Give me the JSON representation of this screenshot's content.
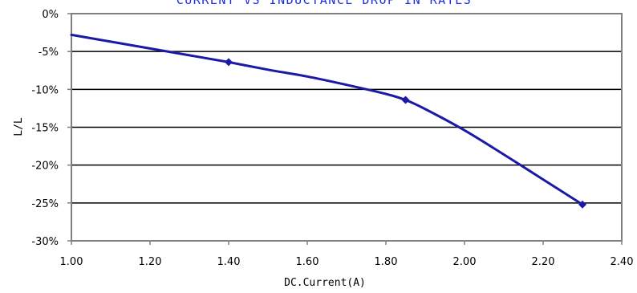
{
  "chart_data": {
    "type": "line",
    "title": "CURRENT VS INDUCTANCE DROP IN RATES",
    "xlabel": "DC.Current(A)",
    "ylabel": "L/L",
    "xlim": [
      1.0,
      2.4
    ],
    "ylim": [
      -30,
      0
    ],
    "x_ticks": [
      "1.00",
      "1.20",
      "1.40",
      "1.60",
      "1.80",
      "2.00",
      "2.20",
      "2.40"
    ],
    "y_ticks": [
      "0%",
      "-5%",
      "-10%",
      "-15%",
      "-20%",
      "-25%",
      "-30%"
    ],
    "grid": "horizontal",
    "series": [
      {
        "curve_x": [
          1.0,
          1.1,
          1.2,
          1.3,
          1.4,
          1.5,
          1.6,
          1.7,
          1.8,
          1.85,
          1.9,
          2.0,
          2.1,
          2.2,
          2.3
        ],
        "curve_y": [
          -2.8,
          -3.7,
          -4.6,
          -5.5,
          -6.4,
          -7.4,
          -8.3,
          -9.4,
          -10.6,
          -11.4,
          -12.6,
          -15.4,
          -18.6,
          -21.9,
          -25.2
        ],
        "markers": [
          {
            "x": 1.4,
            "y": -6.4
          },
          {
            "x": 1.85,
            "y": -11.4
          },
          {
            "x": 2.3,
            "y": -25.2
          }
        ]
      }
    ],
    "colors": {
      "line": "#1a1aa6",
      "title": "#1f2ee0",
      "frame": "#808080",
      "grid": "#000000"
    }
  }
}
